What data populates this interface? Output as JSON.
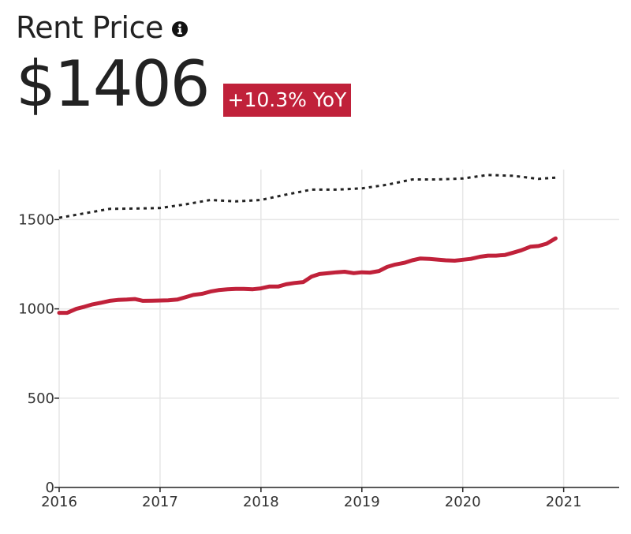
{
  "header": {
    "title": "Rent Price",
    "value": "$1406",
    "yoy": "+10.3% YoY",
    "info_icon": "info-circle-icon"
  },
  "colors": {
    "primary_series": "#c0213a",
    "comparison_series": "#222222",
    "badge": "#c0213a",
    "grid": "#e6e6e6"
  },
  "chart_data": {
    "type": "line",
    "title": "Rent Price",
    "xlabel": "",
    "ylabel": "",
    "xlim": [
      2016,
      2021.55
    ],
    "ylim": [
      0,
      1780
    ],
    "x_ticks": [
      2016,
      2017,
      2018,
      2019,
      2020,
      2021
    ],
    "y_ticks": [
      0,
      500,
      1000,
      1500
    ],
    "grid": "vertical and horizontal",
    "legend": "none",
    "series": [
      {
        "style": "solid",
        "color": "#c0213a",
        "x": [
          2016.0,
          2016.08,
          2016.17,
          2016.25,
          2016.33,
          2016.42,
          2016.5,
          2016.58,
          2016.67,
          2016.75,
          2016.83,
          2016.92,
          2017.0,
          2017.08,
          2017.17,
          2017.25,
          2017.33,
          2017.42,
          2017.5,
          2017.58,
          2017.67,
          2017.75,
          2017.83,
          2017.92,
          2018.0,
          2018.08,
          2018.17,
          2018.25,
          2018.33,
          2018.42,
          2018.5,
          2018.58,
          2018.67,
          2018.75,
          2018.83,
          2018.92,
          2019.0,
          2019.08,
          2019.17,
          2019.25,
          2019.33,
          2019.42,
          2019.5,
          2019.58,
          2019.67,
          2019.75,
          2019.83,
          2019.92,
          2020.0,
          2020.08,
          2020.17,
          2020.25,
          2020.33,
          2020.42,
          2020.5,
          2020.58,
          2020.67,
          2020.75,
          2020.83,
          2020.92
        ],
        "y": [
          978,
          978,
          1000,
          1012,
          1025,
          1035,
          1045,
          1050,
          1052,
          1055,
          1045,
          1046,
          1047,
          1048,
          1052,
          1065,
          1078,
          1085,
          1097,
          1105,
          1110,
          1112,
          1112,
          1110,
          1115,
          1125,
          1125,
          1138,
          1145,
          1150,
          1180,
          1195,
          1200,
          1205,
          1208,
          1200,
          1205,
          1203,
          1212,
          1235,
          1248,
          1258,
          1272,
          1282,
          1280,
          1276,
          1272,
          1270,
          1275,
          1280,
          1292,
          1298,
          1298,
          1302,
          1315,
          1328,
          1348,
          1352,
          1365,
          1395
        ]
      },
      {
        "style": "dotted",
        "color": "#222222",
        "x": [
          2016.0,
          2016.25,
          2016.5,
          2016.75,
          2017.0,
          2017.25,
          2017.5,
          2017.75,
          2018.0,
          2018.25,
          2018.5,
          2018.75,
          2019.0,
          2019.25,
          2019.5,
          2019.75,
          2020.0,
          2020.25,
          2020.5,
          2020.75,
          2020.92
        ],
        "y": [
          1510,
          1535,
          1560,
          1562,
          1565,
          1585,
          1610,
          1602,
          1610,
          1640,
          1668,
          1668,
          1675,
          1695,
          1725,
          1725,
          1730,
          1750,
          1745,
          1728,
          1735
        ]
      }
    ]
  }
}
